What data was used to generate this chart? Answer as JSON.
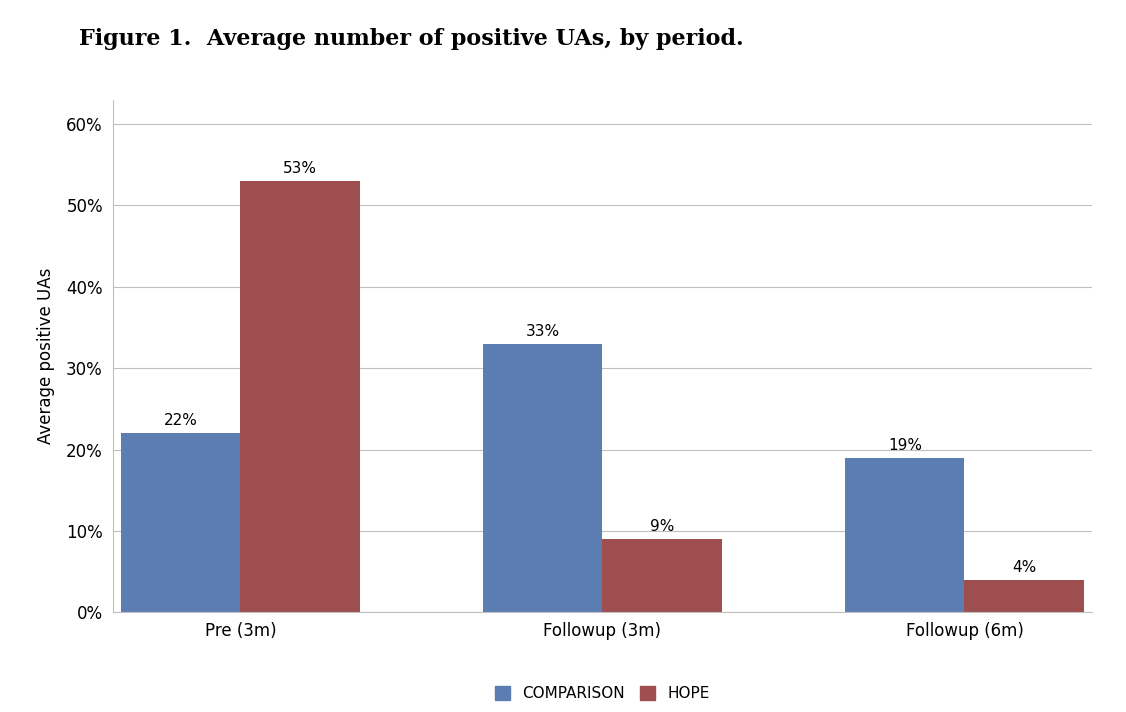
{
  "title": "Figure 1.  Average number of positive UAs, by period.",
  "categories": [
    "Pre (3m)",
    "Followup (3m)",
    "Followup (6m)"
  ],
  "comparison_values": [
    0.22,
    0.33,
    0.19
  ],
  "hope_values": [
    0.53,
    0.09,
    0.04
  ],
  "comparison_labels": [
    "22%",
    "33%",
    "19%"
  ],
  "hope_labels": [
    "53%",
    "9%",
    "4%"
  ],
  "comparison_color": "#5B7DB1",
  "hope_color": "#9E4E4E",
  "ylabel": "Average positive UAs",
  "ylim": [
    0,
    0.63
  ],
  "yticks": [
    0.0,
    0.1,
    0.2,
    0.3,
    0.4,
    0.5,
    0.6
  ],
  "ytick_labels": [
    "0%",
    "10%",
    "20%",
    "30%",
    "40%",
    "50%",
    "60%"
  ],
  "legend_labels": [
    "COMPARISON",
    "HOPE"
  ],
  "bar_width": 0.28,
  "group_positions": [
    0.25,
    1.1,
    1.95
  ],
  "title_fontsize": 16,
  "axis_fontsize": 12,
  "tick_fontsize": 12,
  "label_fontsize": 11,
  "legend_fontsize": 11,
  "background_color": "#ffffff"
}
